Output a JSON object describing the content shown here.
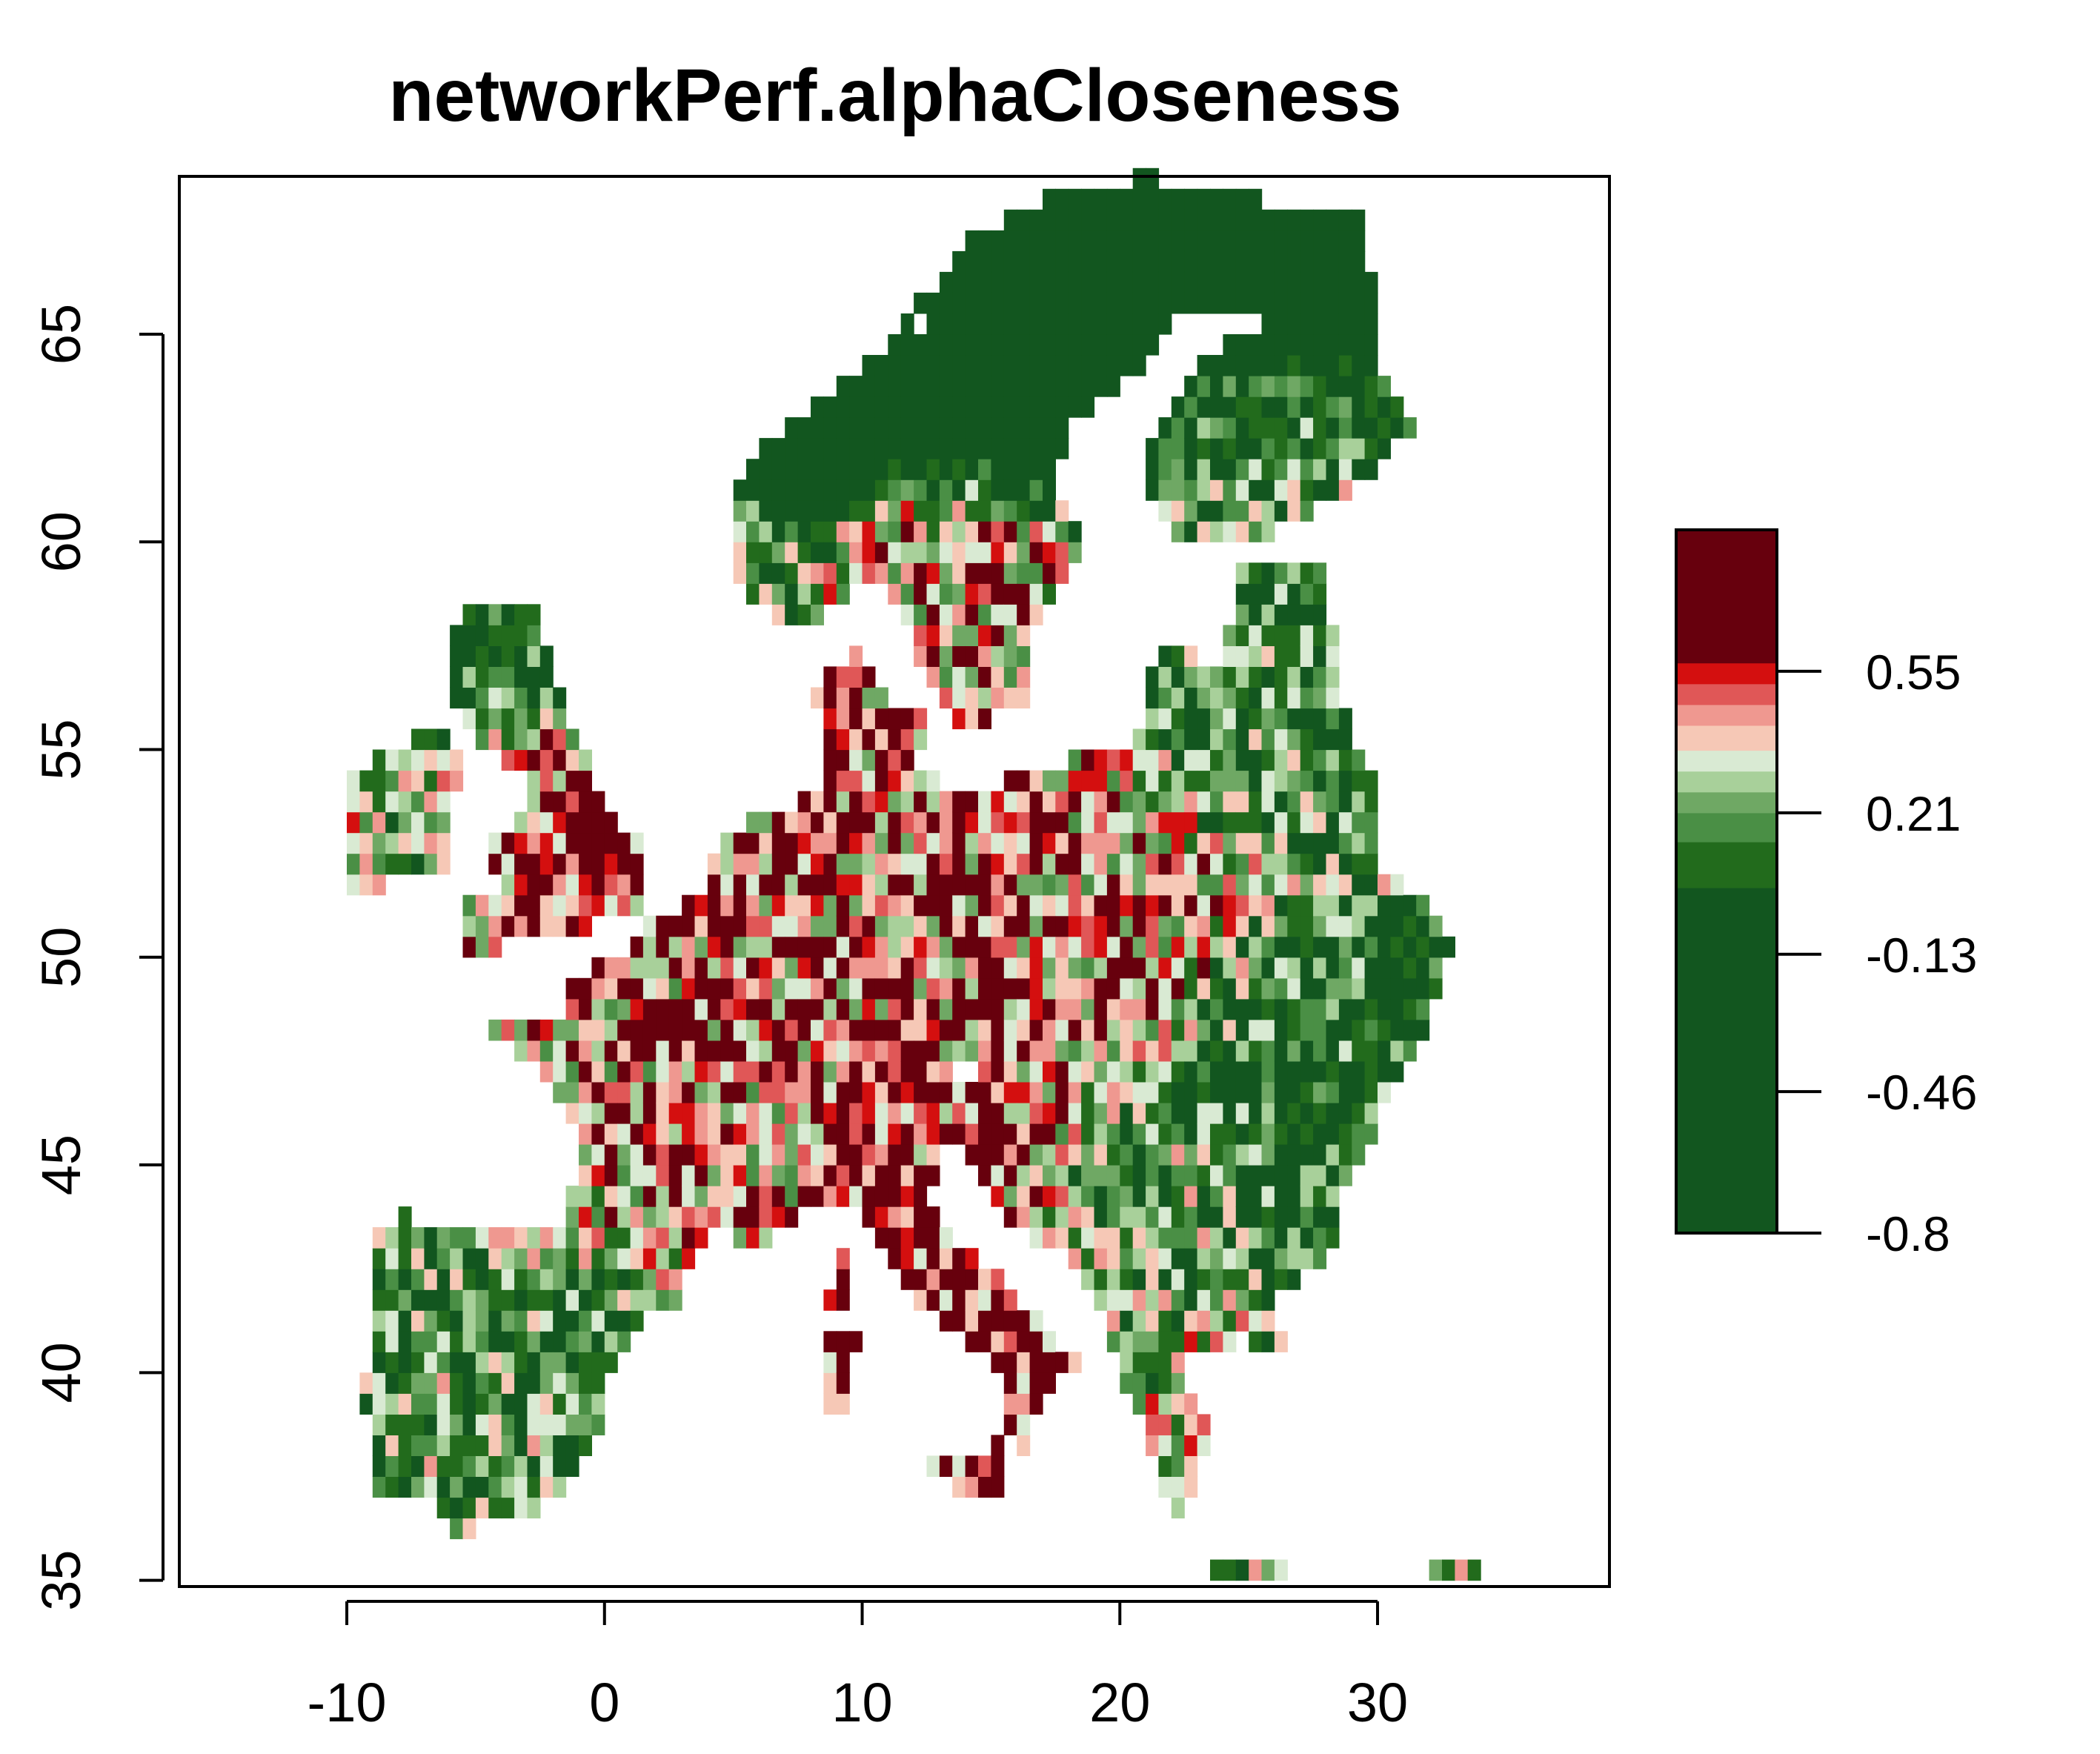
{
  "chart_data": {
    "type": "heatmap",
    "title": "networkPerf.alphaCloseness",
    "xlabel": "",
    "ylabel": "",
    "xlim": [
      -16.5,
      39.0
    ],
    "ylim": [
      34.85,
      68.8
    ],
    "x_ticks": [
      -10,
      0,
      10,
      20,
      30
    ],
    "x_tick_labels": [
      "-10",
      "0",
      "10",
      "20",
      "30"
    ],
    "y_ticks": [
      35,
      40,
      45,
      50,
      55,
      60,
      65
    ],
    "y_tick_labels": [
      "35",
      "40",
      "45",
      "50",
      "55",
      "60",
      "65"
    ],
    "grid": false,
    "legend_position": "right",
    "value_range": [
      -0.8,
      0.89
    ],
    "legend": {
      "ticks": [
        0.55,
        0.21,
        -0.13,
        -0.46,
        -0.8
      ],
      "tick_labels": [
        "0.55",
        "0.21",
        "-0.13",
        "-0.46",
        "-0.8"
      ],
      "bands": [
        {
          "from": -0.8,
          "to": 0.03,
          "color": "#12561f"
        },
        {
          "from": 0.03,
          "to": 0.14,
          "color": "#226b1c"
        },
        {
          "from": 0.14,
          "to": 0.21,
          "color": "#4a8f45"
        },
        {
          "from": 0.21,
          "to": 0.26,
          "color": "#6fa864"
        },
        {
          "from": 0.26,
          "to": 0.31,
          "color": "#a8d09a"
        },
        {
          "from": 0.31,
          "to": 0.36,
          "color": "#d9ead3"
        },
        {
          "from": 0.36,
          "to": 0.42,
          "color": "#f6c8b6"
        },
        {
          "from": 0.42,
          "to": 0.47,
          "color": "#ef9890"
        },
        {
          "from": 0.47,
          "to": 0.52,
          "color": "#e05757"
        },
        {
          "from": 0.52,
          "to": 0.57,
          "color": "#d40f0f"
        },
        {
          "from": 0.57,
          "to": 0.89,
          "color": "#67000d"
        }
      ]
    },
    "region_means": [
      {
        "lon": 14,
        "lat": 66,
        "rx": 8,
        "ry": 3,
        "value": -0.55
      },
      {
        "lon": 27,
        "lat": 66.5,
        "rx": 4,
        "ry": 2.5,
        "value": -0.55
      },
      {
        "lon": 26,
        "lat": 63,
        "rx": 4,
        "ry": 2,
        "value": 0.2
      },
      {
        "lon": 14,
        "lat": 59,
        "rx": 3,
        "ry": 2,
        "value": 0.42
      },
      {
        "lon": 25,
        "lat": 56.5,
        "rx": 4,
        "ry": 2.5,
        "value": 0.1
      },
      {
        "lon": 8,
        "lat": 51.5,
        "rx": 6,
        "ry": 3,
        "value": 0.5
      },
      {
        "lon": 17,
        "lat": 51,
        "rx": 5,
        "ry": 3,
        "value": 0.46
      },
      {
        "lon": -2,
        "lat": 53,
        "rx": 2.5,
        "ry": 2.5,
        "value": 0.6
      },
      {
        "lon": -7,
        "lat": 53.5,
        "rx": 3,
        "ry": 2,
        "value": 0.25
      },
      {
        "lon": -4,
        "lat": 57,
        "rx": 3,
        "ry": 2,
        "value": 0.0
      },
      {
        "lon": 2,
        "lat": 46.5,
        "rx": 4,
        "ry": 3,
        "value": 0.45
      },
      {
        "lon": -4,
        "lat": 40.5,
        "rx": 5,
        "ry": 3,
        "value": 0.15
      },
      {
        "lon": 13,
        "lat": 42.5,
        "rx": 3,
        "ry": 3,
        "value": 0.58
      },
      {
        "lon": 27,
        "lat": 46,
        "rx": 4,
        "ry": 3,
        "value": 0.05
      },
      {
        "lon": 23,
        "lat": 39,
        "rx": 2.5,
        "ry": 2,
        "value": 0.3
      },
      {
        "lon": 21,
        "lat": 44,
        "rx": 3,
        "ry": 2,
        "value": 0.2
      }
    ]
  }
}
